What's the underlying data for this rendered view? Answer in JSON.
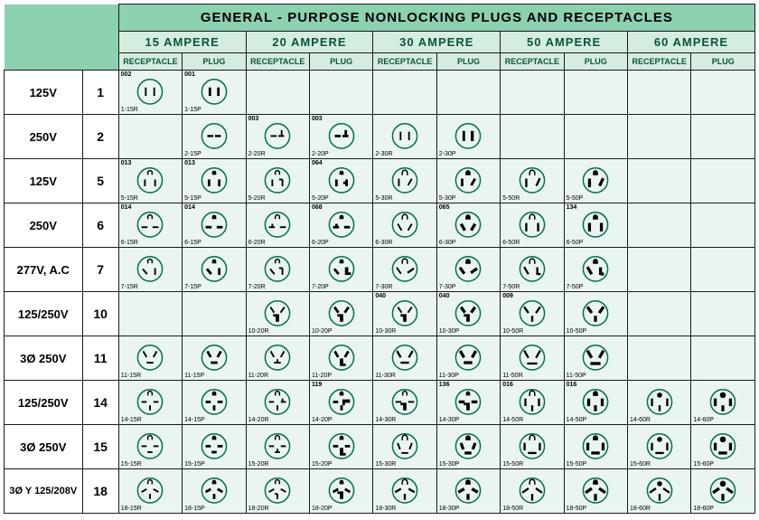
{
  "title": "GENERAL - PURPOSE NONLOCKING PLUGS AND RECEPTACLES",
  "amperes": [
    "15  AMPERE",
    "20  AMPERE",
    "30  AMPERE",
    "50  AMPERE",
    "60  AMPERE"
  ],
  "subheads": [
    "RECEPTACLE",
    "PLUG"
  ],
  "colors": {
    "title_bg": "#8cd1b0",
    "head_bg": "#d5ede0",
    "cell_bg": "#eaf5ef",
    "border": "#1a1a1a",
    "head_text": "#0a5538",
    "ring": "#006f4e",
    "blade": "#000000"
  },
  "rows": [
    {
      "volt": "125V",
      "num": "1",
      "cells": [
        {
          "label": "1-15R",
          "id": "002",
          "sym": "r1"
        },
        {
          "label": "1-15P",
          "id": "001",
          "sym": "p1"
        },
        null,
        null,
        null,
        null,
        null,
        null,
        null,
        null
      ]
    },
    {
      "volt": "250V",
      "num": "2",
      "cells": [
        null,
        {
          "label": "2-15P",
          "sym": "p2"
        },
        {
          "label": "2-20R",
          "id": "003",
          "sym": "r2b"
        },
        {
          "label": "2-20P",
          "id": "003",
          "sym": "p2b"
        },
        {
          "label": "2-30R",
          "sym": "r1"
        },
        {
          "label": "2-30P",
          "sym": "p2c"
        },
        null,
        null,
        null,
        null
      ]
    },
    {
      "volt": "125V",
      "num": "5",
      "cells": [
        {
          "label": "5-15R",
          "id": "013",
          "sym": "r5"
        },
        {
          "label": "5-15P",
          "id": "013",
          "sym": "p5"
        },
        {
          "label": "5-20R",
          "sym": "r5b"
        },
        {
          "label": "5-20P",
          "id": "064",
          "sym": "p5b"
        },
        {
          "label": "5-30R",
          "sym": "r5c"
        },
        {
          "label": "5-30P",
          "sym": "p5c"
        },
        {
          "label": "5-50R",
          "sym": "r5d"
        },
        {
          "label": "5-50P",
          "sym": "p5d"
        },
        null,
        null
      ]
    },
    {
      "volt": "250V",
      "num": "6",
      "cells": [
        {
          "label": "6-15R",
          "id": "014",
          "sym": "r6"
        },
        {
          "label": "6-15P",
          "id": "014",
          "sym": "p6"
        },
        {
          "label": "6-20R",
          "sym": "r6b"
        },
        {
          "label": "6-20P",
          "id": "068",
          "sym": "p6b"
        },
        {
          "label": "6-30R",
          "sym": "r6c"
        },
        {
          "label": "6-30P",
          "id": "065",
          "sym": "p6c"
        },
        {
          "label": "6-50R",
          "sym": "r6d"
        },
        {
          "label": "6-50P",
          "id": "134",
          "sym": "p6d"
        },
        null,
        null
      ]
    },
    {
      "volt": "277V, A.C",
      "num": "7",
      "cells": [
        {
          "label": "7-15R",
          "sym": "r7"
        },
        {
          "label": "7-15P",
          "sym": "p7"
        },
        {
          "label": "7-20R",
          "sym": "r7b"
        },
        {
          "label": "7-20P",
          "sym": "p7b"
        },
        {
          "label": "7-30R",
          "sym": "r7c"
        },
        {
          "label": "7-30P",
          "sym": "p7c"
        },
        {
          "label": "7-50R",
          "sym": "r7d"
        },
        {
          "label": "7-50P",
          "sym": "p7d"
        },
        null,
        null
      ]
    },
    {
      "volt": "125/250V",
      "num": "10",
      "cells": [
        null,
        null,
        {
          "label": "10-20R",
          "sym": "r10"
        },
        {
          "label": "10-20P",
          "sym": "p10"
        },
        {
          "label": "10-30R",
          "id": "040",
          "sym": "r10b"
        },
        {
          "label": "10-30P",
          "id": "040",
          "sym": "p10b"
        },
        {
          "label": "10-50R",
          "id": "009",
          "sym": "r10c"
        },
        {
          "label": "10-50P",
          "sym": "p10c"
        },
        null,
        null
      ]
    },
    {
      "volt": "3Ø 250V",
      "num": "11",
      "cells": [
        {
          "label": "11-15R",
          "sym": "r11"
        },
        {
          "label": "11-15P",
          "sym": "p11"
        },
        {
          "label": "11-20R",
          "sym": "r11b"
        },
        {
          "label": "11-20P",
          "sym": "p11b"
        },
        {
          "label": "11-30R",
          "sym": "r11c"
        },
        {
          "label": "11-30P",
          "sym": "p11c"
        },
        {
          "label": "11-50R",
          "sym": "r11d"
        },
        {
          "label": "11-50P",
          "sym": "p11d"
        },
        null,
        null
      ]
    },
    {
      "volt": "125/250V",
      "num": "14",
      "cells": [
        {
          "label": "14-15R",
          "sym": "r14"
        },
        {
          "label": "14-15P",
          "sym": "p14"
        },
        {
          "label": "14-20R",
          "sym": "r14b"
        },
        {
          "label": "14-20P",
          "id": "119",
          "sym": "p14b"
        },
        {
          "label": "14-30R",
          "sym": "r14c"
        },
        {
          "label": "14-30P",
          "id": "136",
          "sym": "p14c"
        },
        {
          "label": "14-50R",
          "id": "016",
          "sym": "r14d"
        },
        {
          "label": "14-50P",
          "id": "016",
          "sym": "p14d"
        },
        {
          "label": "14-60R",
          "sym": "r14e"
        },
        {
          "label": "14-60P",
          "sym": "p14e"
        }
      ]
    },
    {
      "volt": "3Ø 250V",
      "num": "15",
      "cells": [
        {
          "label": "15-15R",
          "sym": "r15"
        },
        {
          "label": "15-15P",
          "sym": "p15"
        },
        {
          "label": "15-20R",
          "sym": "r15b"
        },
        {
          "label": "15-20P",
          "sym": "p15b"
        },
        {
          "label": "15-30R",
          "sym": "r15c"
        },
        {
          "label": "15-30P",
          "sym": "p15c"
        },
        {
          "label": "15-50R",
          "sym": "r15d"
        },
        {
          "label": "15-50P",
          "sym": "p15d"
        },
        {
          "label": "15-60R",
          "sym": "r15e"
        },
        {
          "label": "15-60P",
          "sym": "p15e"
        }
      ]
    },
    {
      "volt": "3Ø Y 125/208V",
      "num": "18",
      "cells": [
        {
          "label": "18-15R",
          "sym": "r18"
        },
        {
          "label": "18-15P",
          "sym": "p18"
        },
        {
          "label": "18-20R",
          "sym": "r18b"
        },
        {
          "label": "18-20P",
          "sym": "p18b"
        },
        {
          "label": "18-30R",
          "sym": "r18c"
        },
        {
          "label": "18-30P",
          "sym": "p18c"
        },
        {
          "label": "18-50R",
          "sym": "r18d"
        },
        {
          "label": "18-50P",
          "sym": "p18d"
        },
        {
          "label": "18-60R",
          "sym": "r18e"
        },
        {
          "label": "18-60P",
          "sym": "p18e"
        }
      ]
    }
  ]
}
